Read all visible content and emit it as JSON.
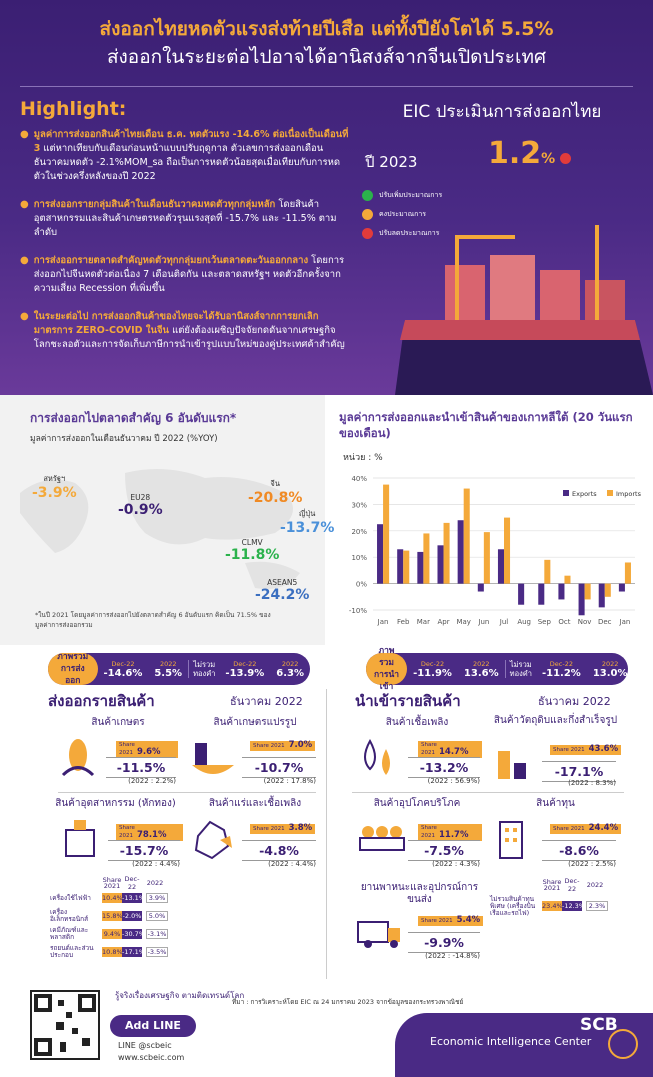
{
  "header": {
    "title": "ส่งออกไทยหดตัวแรงส่งท้ายปีเสือ แต่ทั้งปียังโตได้ 5.5%",
    "subtitle": "ส่งออกในระยะต่อไปอาจได้อานิสงส์จากจีนเปิดประเทศ"
  },
  "highlight": {
    "heading": "Highlight:",
    "items": [
      {
        "bold": "มูลค่าการส่งออกสินค้าไทยเดือน ธ.ค. หดตัวแรง -14.6% ต่อเนื่องเป็นเดือนที่ 3",
        "text": " แต่หากเทียบกับเดือนก่อนหน้าแบบปรับฤดูกาล ตัวเลขการส่งออกเดือนธันวาคมหดตัว -2.1%MOM_sa ถือเป็นการหดตัวน้อยสุดเมื่อเทียบกับการหดตัวในช่วงครึ่งหลังของปี 2022"
      },
      {
        "bold": "การส่งออกรายกลุ่มสินค้าในเดือนธันวาคมหดตัวทุกกลุ่มหลัก",
        "text": " โดยสินค้าอุตสาหกรรมและสินค้าเกษตรหดตัวรุนแรงสุดที่ -15.7% และ -11.5% ตามลำดับ"
      },
      {
        "bold": "การส่งออกรายตลาดสำคัญหดตัวทุกกลุ่มยกเว้นตลาดตะวันออกกลาง",
        "text": " โดยการส่งออกไปจีนหดตัวต่อเนื่อง 7 เดือนติดกัน และตลาดสหรัฐฯ หดตัวอีกครั้งจากความเสี่ยง Recession ที่เพิ่มขึ้น"
      },
      {
        "bold": "ในระยะต่อไป การส่งออกสินค้าของไทยจะได้รับอานิสงส์จากการยกเลิกมาตรการ ZERO-COVID ในจีน",
        "text": " แต่ยังต้องเผชิญปัจจัยกดดันจากเศรษฐกิจโลกชะลอตัวและการจัดเก็บภาษีการนำเข้ารูปแบบใหม่ของคู่ประเทศค้าสำคัญ"
      }
    ]
  },
  "eic": {
    "heading": "EIC ประเมินการส่งออกไทย",
    "year_label": "ปี 2023",
    "value": "1.2",
    "unit": "%",
    "legend": [
      "ปรับเพิ่มประมาณการ",
      "คงประมาณการ",
      "ปรับลดประมาณการ"
    ],
    "legend_colors": [
      "#2bb24c",
      "#f4a93a",
      "#e23b3b"
    ]
  },
  "markets": {
    "heading": "การส่งออกไปตลาดสำคัญ 6 อันดับแรก*",
    "subheading": "มูลค่าการส่งออกในเดือนธันวาคม ปี 2022 (%YOY)",
    "pins": [
      {
        "label": "สหรัฐฯ",
        "value": "-3.9%",
        "color": "#f4a93a"
      },
      {
        "label": "EU28",
        "value": "-0.9%",
        "color": "#3b1f73"
      },
      {
        "label": "จีน",
        "value": "-20.8%",
        "color": "#f08a24"
      },
      {
        "label": "ญี่ปุ่น",
        "value": "-13.7%",
        "color": "#4a90d9"
      },
      {
        "label": "CLMV",
        "value": "-11.8%",
        "color": "#2bb24c"
      },
      {
        "label": "ASEAN5",
        "value": "-24.2%",
        "color": "#3b6fc0"
      }
    ],
    "note": "*ในปี 2021 โดยมูลค่าการส่งออกไปยังตลาดสำคัญ 6 อันดับแรก คิดเป็น 71.5% ของมูลค่าการส่งออกรวม"
  },
  "korea": {
    "heading": "มูลค่าการส่งออกและนำเข้าสินค้าของเกาหลีใต้ (20 วันแรกของเดือน)",
    "unit_label": "หน่วย : %"
  },
  "chart_data": {
    "type": "bar",
    "title": "มูลค่าการส่งออกและนำเข้าสินค้าของเกาหลีใต้ (20 วันแรกของเดือน)",
    "ylabel": "หน่วย : %",
    "ylim": [
      -10,
      40
    ],
    "yticks": [
      "40%",
      "30%",
      "20%",
      "10%",
      "0%",
      "-10%"
    ],
    "categories": [
      "Jan",
      "Feb",
      "Mar",
      "Apr",
      "May",
      "Jun",
      "Jul",
      "Aug",
      "Sep",
      "Oct",
      "Nov",
      "Dec",
      "Jan"
    ],
    "series": [
      {
        "name": "Exports",
        "color": "#4a2a85",
        "values": [
          22.5,
          13,
          12,
          14.5,
          24,
          -3,
          13,
          -8,
          -8,
          -6,
          -12,
          -9,
          -3
        ]
      },
      {
        "name": "Imports",
        "color": "#f4a93a",
        "values": [
          37.5,
          12.5,
          19,
          23,
          36,
          19.5,
          25,
          0,
          9,
          3,
          -6,
          -5,
          8
        ]
      }
    ],
    "legend": "top-right"
  },
  "exports": {
    "summary": {
      "label": "ภาพรวมการส่งออก",
      "h1": "Dec-22",
      "v1": "-14.6%",
      "h2": "2022",
      "v2": "5.5%",
      "mid": "ไม่รวมทองคำ",
      "h3": "Dec-22",
      "v3": "-13.9%",
      "h4": "2022",
      "v4": "6.3%"
    },
    "heading": "ส่งออกรายสินค้า",
    "date": "ธันวาคม 2022",
    "cards": [
      {
        "title": "สินค้าเกษตร",
        "share_label": "Share 2021",
        "share": "9.6%",
        "pct": "-11.5%",
        "yr": "(2022 : 2.2%)"
      },
      {
        "title": "สินค้าเกษตรแปรรูป",
        "share_label": "Share 2021",
        "share": "7.0%",
        "pct": "-10.7%",
        "yr": "(2022 : 17.8%)"
      },
      {
        "title": "สินค้าอุตสาหกรรม (หักทอง)",
        "share_label": "Share 2021",
        "share": "78.1%",
        "pct": "-15.7%",
        "yr": "(2022 : 4.4%)"
      },
      {
        "title": "สินค้าแร่และเชื้อเพลิง",
        "share_label": "Share 2021",
        "share": "3.8%",
        "pct": "-4.8%",
        "yr": "(2022 : 4.4%)"
      }
    ],
    "mini": {
      "headers": [
        "Share 2021",
        "Dec-22",
        "2022"
      ],
      "rows": [
        {
          "label": "เครื่องใช้ไฟฟ้า",
          "a": "10.4%",
          "b": "-13.1%",
          "c": "3.9%"
        },
        {
          "label": "เครื่องอิเล็กทรอนิกส์",
          "a": "15.8%",
          "b": "-2.0%",
          "c": "5.0%"
        },
        {
          "label": "เคมีภัณฑ์และพลาสติก",
          "a": "9.4%",
          "b": "-30.7%",
          "c": "-3.1%"
        },
        {
          "label": "รถยนต์และส่วนประกอบ",
          "a": "10.8%",
          "b": "-17.1%",
          "c": "-3.5%"
        }
      ]
    }
  },
  "imports": {
    "summary": {
      "label": "ภาพรวมการนำเข้า",
      "h1": "Dec-22",
      "v1": "-11.9%",
      "h2": "2022",
      "v2": "13.6%",
      "mid": "ไม่รวมทองคำ",
      "h3": "Dec-22",
      "v3": "-11.2%",
      "h4": "2022",
      "v4": "13.0%"
    },
    "heading": "นำเข้ารายสินค้า",
    "date": "ธันวาคม 2022",
    "cards": [
      {
        "title": "สินค้าเชื้อเพลิง",
        "share_label": "Share 2021",
        "share": "14.7%",
        "pct": "-13.2%",
        "yr": "(2022 : 56.9%)"
      },
      {
        "title": "สินค้าวัตถุดิบและกึ่งสำเร็จรูป",
        "share_label": "Share 2021",
        "share": "43.6%",
        "pct": "-17.1%",
        "yr": "(2022 : 8.3%)"
      },
      {
        "title": "สินค้าอุปโภคบริโภค",
        "share_label": "Share 2021",
        "share": "11.7%",
        "pct": "-7.5%",
        "yr": "(2022 : 4.3%)"
      },
      {
        "title": "สินค้าทุน",
        "share_label": "Share 2021",
        "share": "24.4%",
        "pct": "-8.6%",
        "yr": "(2022 : 2.5%)"
      },
      {
        "title": "ยานพาหนะและอุปกรณ์การขนส่ง",
        "share_label": "Share 2021",
        "share": "5.4%",
        "pct": "-9.9%",
        "yr": "(2022 : -14.8%)"
      }
    ],
    "mini": {
      "headers": [
        "Share 2021",
        "Dec-22",
        "2022"
      ],
      "rows": [
        {
          "label": "ไม่รวมสินค้าทุนพิเศษ (เครื่องบิน เรือและรถไฟ)",
          "a": "23.4%",
          "b": "-12.3%",
          "c": "2.3%"
        }
      ]
    }
  },
  "footer": {
    "follow": "รู้จริงเรื่องเศรษฐกิจ ตามติดเทรนด์โลก",
    "add_line": "Add LINE",
    "line_id": "LINE @scbeic",
    "website": "www.scbeic.com",
    "source": "ที่มา : การวิเคราะห์โดย EIC ณ 24 มกราคม 2023 จากข้อมูลของกระทรวงพาณิชย์",
    "brand": "SCB",
    "brand_sub": "Economic Intelligence Center"
  }
}
